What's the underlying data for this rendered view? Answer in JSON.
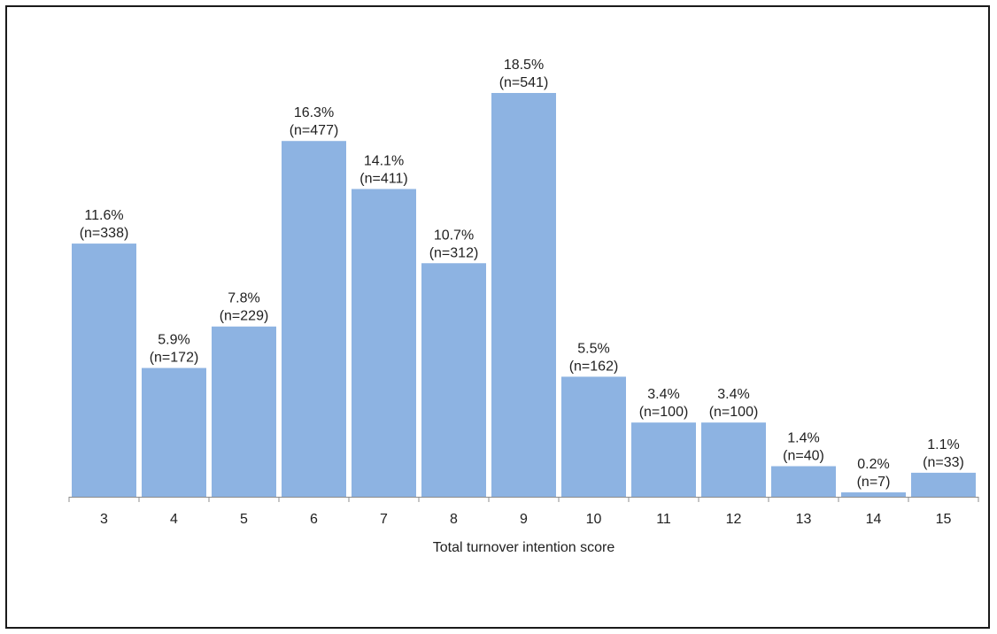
{
  "chart_data": {
    "type": "bar",
    "title": "",
    "xlabel": "Total turnover intention score",
    "ylabel": "",
    "categories": [
      "3",
      "4",
      "5",
      "6",
      "7",
      "8",
      "9",
      "10",
      "11",
      "12",
      "13",
      "14",
      "15"
    ],
    "values": [
      11.6,
      5.9,
      7.8,
      16.3,
      14.1,
      10.7,
      18.5,
      5.5,
      3.4,
      3.4,
      1.4,
      0.2,
      1.1
    ],
    "value_unit": "%",
    "counts": [
      338,
      172,
      229,
      477,
      411,
      312,
      541,
      162,
      100,
      100,
      40,
      7,
      33
    ],
    "pct_labels": [
      "11.6%",
      "5.9%",
      "7.8%",
      "16.3%",
      "14.1%",
      "10.7%",
      "18.5%",
      "5.5%",
      "3.4%",
      "3.4%",
      "1.4%",
      "0.2%",
      "1.1%"
    ],
    "n_labels": [
      "(n=338)",
      "(n=172)",
      "(n=229)",
      "(n=477)",
      "(n=411)",
      "(n=312)",
      "(n=541)",
      "(n=162)",
      "(n=100)",
      "(n=100)",
      "(n=40)",
      "(n=7)",
      "(n=33)"
    ],
    "ylim": [
      0,
      18.5
    ],
    "grid": false,
    "legend": "none",
    "bar_color": "#8db3e2"
  }
}
